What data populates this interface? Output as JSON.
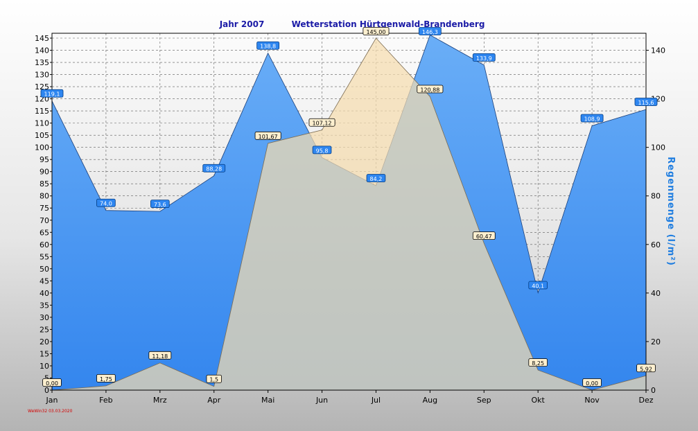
{
  "chart_data": {
    "type": "area",
    "title_year": "Jahr  2007",
    "title_station": "Wetterstation Hürtgenwald-Brandenberg",
    "categories": [
      "Jan",
      "Feb",
      "Mrz",
      "Apr",
      "Mai",
      "Jun",
      "Jul",
      "Aug",
      "Sep",
      "Okt",
      "Nov",
      "Dez"
    ],
    "y_right_label": "Regenmenge  (l/m²)",
    "y_left_ticks": [
      0,
      5,
      10,
      15,
      20,
      25,
      30,
      35,
      40,
      45,
      50,
      55,
      60,
      65,
      70,
      75,
      80,
      85,
      90,
      95,
      100,
      105,
      110,
      115,
      120,
      125,
      130,
      135,
      140,
      145
    ],
    "y_right_ticks": [
      0,
      20,
      40,
      60,
      80,
      100,
      120,
      140
    ],
    "ylim": [
      0,
      147
    ],
    "series": [
      {
        "color": "#f5dcae",
        "axis": "left",
        "values": [
          0.0,
          1.75,
          11.18,
          1.5,
          101.67,
          107.12,
          145.0,
          120.88,
          60.47,
          8.25,
          0.0,
          5.92
        ],
        "labels": [
          "0,00",
          "1,75",
          "11,18",
          "1,5",
          "101,67",
          "107,12",
          "145,00",
          "120,88",
          "60,47",
          "8,25",
          "0,00",
          "5,92"
        ]
      },
      {
        "color": "#3d8ef0",
        "axis": "right",
        "values": [
          119.1,
          74.0,
          73.6,
          88.28,
          138.8,
          95.8,
          84.2,
          146.3,
          133.9,
          40.1,
          108.9,
          115.6
        ],
        "labels": [
          "119,1",
          "74,0",
          "73,6",
          "88,28",
          "138,8",
          "95,8",
          "84,2",
          "146,3",
          "133,9",
          "40,1",
          "108,9",
          "115,6"
        ]
      }
    ],
    "footer": "WeWin32  03.03.2020"
  }
}
